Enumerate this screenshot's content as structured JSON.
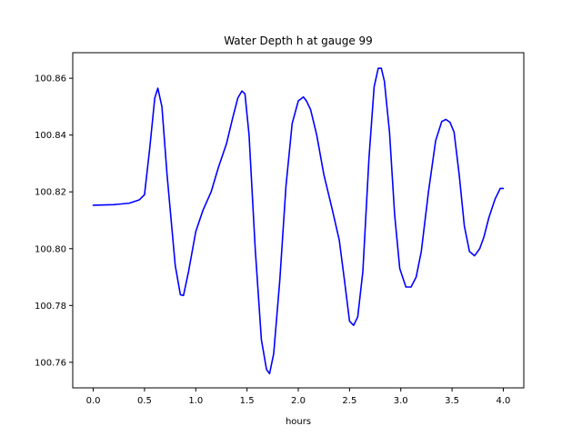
{
  "chart_data": {
    "type": "line",
    "title": "Water Depth h at gauge 99",
    "xlabel": "hours",
    "ylabel": "",
    "xlim": [
      -0.2,
      4.2
    ],
    "ylim": [
      100.751,
      100.869
    ],
    "xticks": [
      0.0,
      0.5,
      1.0,
      1.5,
      2.0,
      2.5,
      3.0,
      3.5,
      4.0
    ],
    "xtick_labels": [
      "0.0",
      "0.5",
      "1.0",
      "1.5",
      "2.0",
      "2.5",
      "3.0",
      "3.5",
      "4.0"
    ],
    "yticks": [
      100.76,
      100.78,
      100.8,
      100.82,
      100.84,
      100.86
    ],
    "ytick_labels": [
      "100.76",
      "100.78",
      "100.80",
      "100.82",
      "100.84",
      "100.86"
    ],
    "grid": false,
    "series": [
      {
        "color": "#0000ff",
        "x": [
          0.0,
          0.2,
          0.35,
          0.45,
          0.5,
          0.55,
          0.6,
          0.63,
          0.67,
          0.72,
          0.8,
          0.85,
          0.88,
          0.93,
          1.0,
          1.07,
          1.15,
          1.22,
          1.3,
          1.36,
          1.41,
          1.45,
          1.48,
          1.52,
          1.58,
          1.64,
          1.69,
          1.72,
          1.76,
          1.82,
          1.88,
          1.94,
          2.0,
          2.05,
          2.08,
          2.12,
          2.18,
          2.25,
          2.33,
          2.4,
          2.45,
          2.5,
          2.54,
          2.58,
          2.63,
          2.69,
          2.74,
          2.78,
          2.81,
          2.84,
          2.89,
          2.94,
          2.99,
          3.05,
          3.1,
          3.15,
          3.2,
          3.27,
          3.34,
          3.4,
          3.44,
          3.48,
          3.52,
          3.57,
          3.62,
          3.67,
          3.72,
          3.77,
          3.81,
          3.86,
          3.92,
          3.97,
          4.0
        ],
        "y": [
          100.8153,
          100.8155,
          100.816,
          100.8172,
          100.819,
          100.835,
          100.853,
          100.8565,
          100.85,
          100.826,
          100.794,
          100.7838,
          100.7835,
          100.792,
          100.806,
          100.8135,
          100.82,
          100.8285,
          100.837,
          100.846,
          100.853,
          100.8555,
          100.8545,
          100.84,
          100.8,
          100.768,
          100.7575,
          100.756,
          100.763,
          100.789,
          100.822,
          100.844,
          100.852,
          100.8534,
          100.852,
          100.849,
          100.84,
          100.826,
          100.814,
          100.803,
          100.789,
          100.7745,
          100.773,
          100.776,
          100.792,
          100.832,
          100.857,
          100.8635,
          100.8635,
          100.859,
          100.841,
          100.812,
          100.793,
          100.7865,
          100.7865,
          100.79,
          100.799,
          100.82,
          100.838,
          100.8448,
          100.8455,
          100.8445,
          100.841,
          100.826,
          100.808,
          100.799,
          100.7975,
          100.8,
          100.804,
          100.811,
          100.8175,
          100.8212,
          100.8212
        ]
      }
    ]
  }
}
